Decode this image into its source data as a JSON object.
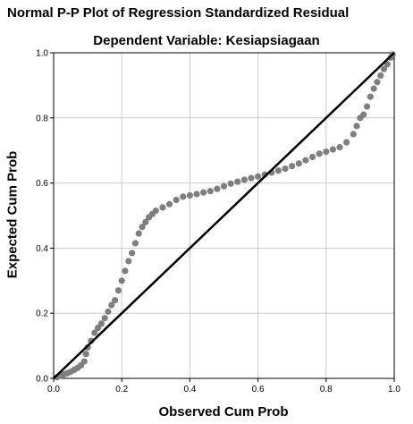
{
  "chart_data": {
    "type": "scatter",
    "title": "Normal P-P Plot of Regression Standardized Residual",
    "subtitle": "Dependent Variable: Kesiapsiagaan",
    "xlabel": "Observed Cum Prob",
    "ylabel": "Expected Cum Prob",
    "xlim": [
      0,
      1
    ],
    "ylim": [
      0,
      1
    ],
    "xticks": [
      "0.0",
      "0.2",
      "0.4",
      "0.6",
      "0.8",
      "1.0"
    ],
    "yticks": [
      "0.0",
      "0.2",
      "0.4",
      "0.6",
      "0.8",
      "1.0"
    ],
    "grid": true,
    "reference_line": [
      [
        0,
        0
      ],
      [
        1,
        1
      ]
    ],
    "series": [
      {
        "points": [
          [
            0.01,
            0.004
          ],
          [
            0.02,
            0.008
          ],
          [
            0.03,
            0.012
          ],
          [
            0.04,
            0.016
          ],
          [
            0.05,
            0.02
          ],
          [
            0.06,
            0.026
          ],
          [
            0.07,
            0.032
          ],
          [
            0.08,
            0.04
          ],
          [
            0.09,
            0.052
          ],
          [
            0.095,
            0.075
          ],
          [
            0.1,
            0.095
          ],
          [
            0.11,
            0.115
          ],
          [
            0.12,
            0.14
          ],
          [
            0.13,
            0.155
          ],
          [
            0.14,
            0.168
          ],
          [
            0.15,
            0.185
          ],
          [
            0.16,
            0.205
          ],
          [
            0.17,
            0.225
          ],
          [
            0.18,
            0.24
          ],
          [
            0.19,
            0.27
          ],
          [
            0.2,
            0.3
          ],
          [
            0.21,
            0.33
          ],
          [
            0.22,
            0.36
          ],
          [
            0.23,
            0.385
          ],
          [
            0.24,
            0.415
          ],
          [
            0.25,
            0.445
          ],
          [
            0.26,
            0.465
          ],
          [
            0.27,
            0.48
          ],
          [
            0.28,
            0.495
          ],
          [
            0.29,
            0.505
          ],
          [
            0.3,
            0.515
          ],
          [
            0.32,
            0.525
          ],
          [
            0.34,
            0.535
          ],
          [
            0.36,
            0.548
          ],
          [
            0.38,
            0.558
          ],
          [
            0.4,
            0.562
          ],
          [
            0.42,
            0.566
          ],
          [
            0.44,
            0.571
          ],
          [
            0.46,
            0.575
          ],
          [
            0.48,
            0.582
          ],
          [
            0.5,
            0.59
          ],
          [
            0.52,
            0.598
          ],
          [
            0.54,
            0.604
          ],
          [
            0.56,
            0.61
          ],
          [
            0.58,
            0.615
          ],
          [
            0.6,
            0.62
          ],
          [
            0.62,
            0.626
          ],
          [
            0.64,
            0.632
          ],
          [
            0.66,
            0.638
          ],
          [
            0.68,
            0.644
          ],
          [
            0.7,
            0.652
          ],
          [
            0.72,
            0.66
          ],
          [
            0.74,
            0.67
          ],
          [
            0.76,
            0.68
          ],
          [
            0.78,
            0.69
          ],
          [
            0.8,
            0.696
          ],
          [
            0.82,
            0.703
          ],
          [
            0.84,
            0.71
          ],
          [
            0.86,
            0.725
          ],
          [
            0.88,
            0.75
          ],
          [
            0.89,
            0.775
          ],
          [
            0.9,
            0.8
          ],
          [
            0.91,
            0.81
          ],
          [
            0.92,
            0.835
          ],
          [
            0.93,
            0.865
          ],
          [
            0.94,
            0.89
          ],
          [
            0.95,
            0.91
          ],
          [
            0.96,
            0.93
          ],
          [
            0.97,
            0.95
          ],
          [
            0.98,
            0.965
          ],
          [
            0.99,
            0.985
          ],
          [
            0.995,
            0.995
          ]
        ]
      }
    ]
  },
  "colors": {
    "points": "#7f7f7f",
    "reference_line": "#000000",
    "grid": "#cccccc",
    "frame": "#000000"
  }
}
